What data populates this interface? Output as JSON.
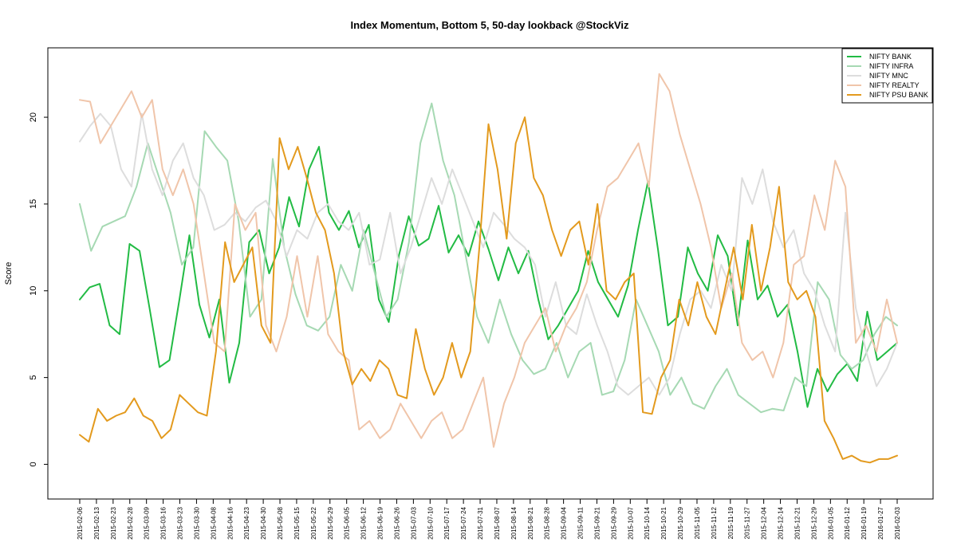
{
  "chart_data": {
    "type": "line",
    "title": "Index Momentum, Bottom 5, 50-day lookback @StockViz",
    "ylabel": "Score",
    "ylim": [
      -2,
      24
    ],
    "yticks": [
      0,
      5,
      10,
      15,
      20
    ],
    "legend_position": "top-right",
    "x_ticks": [
      "2015-02-06",
      "2015-02-13",
      "2015-02-23",
      "2015-02-28",
      "2015-03-09",
      "2015-03-16",
      "2015-03-23",
      "2015-03-30",
      "2015-04-08",
      "2015-04-16",
      "2015-04-23",
      "2015-04-30",
      "2015-05-08",
      "2015-05-15",
      "2015-05-22",
      "2015-05-29",
      "2015-06-05",
      "2015-06-12",
      "2015-06-19",
      "2015-06-26",
      "2015-07-03",
      "2015-07-10",
      "2015-07-17",
      "2015-07-24",
      "2015-07-31",
      "2015-08-07",
      "2015-08-14",
      "2015-08-21",
      "2015-08-28",
      "2015-09-04",
      "2015-09-11",
      "2015-09-21",
      "2015-09-29",
      "2015-10-07",
      "2015-10-14",
      "2015-10-21",
      "2015-10-29",
      "2015-11-05",
      "2015-11-12",
      "2015-11-19",
      "2015-11-27",
      "2015-12-04",
      "2015-12-14",
      "2015-12-21",
      "2015-12-29",
      "2016-01-05",
      "2016-01-12",
      "2016-01-19",
      "2016-01-27",
      "2016-02-03"
    ],
    "series": [
      {
        "name": "NIFTY BANK",
        "color": "#22bb44",
        "values": [
          9.5,
          10.2,
          10.4,
          8.0,
          7.5,
          12.7,
          12.3,
          9.0,
          5.6,
          6.0,
          9.5,
          13.2,
          9.2,
          7.3,
          9.5,
          4.7,
          7.0,
          12.8,
          13.5,
          11.0,
          12.5,
          15.4,
          13.7,
          17.0,
          18.3,
          14.5,
          13.5,
          14.6,
          12.5,
          13.8,
          9.5,
          8.2,
          12.0,
          14.3,
          12.6,
          13.0,
          14.9,
          12.2,
          13.2,
          12.0,
          14.0,
          12.4,
          10.6,
          12.5,
          11.0,
          12.3,
          9.5,
          7.2,
          8.0,
          9.0,
          10.0,
          12.3,
          10.5,
          9.5,
          8.5,
          10.3,
          13.5,
          16.3,
          12.4,
          8.0,
          8.5,
          12.5,
          11.0,
          10.0,
          13.2,
          12.0,
          8.0,
          12.9,
          9.5,
          10.3,
          8.5,
          9.2,
          6.5,
          3.3,
          5.5,
          4.2,
          5.2,
          5.8,
          4.8,
          8.8,
          6.0,
          6.5,
          7.0
        ]
      },
      {
        "name": "NIFTY INFRA",
        "color": "#a6d9b3",
        "values": [
          15.0,
          12.3,
          13.7,
          14.0,
          14.3,
          16.0,
          18.5,
          16.5,
          14.5,
          11.5,
          12.5,
          19.2,
          18.3,
          17.5,
          14.0,
          8.5,
          9.5,
          17.6,
          12.5,
          9.8,
          8.0,
          7.7,
          8.5,
          11.5,
          10.0,
          13.5,
          11.0,
          8.5,
          9.5,
          12.8,
          18.5,
          20.8,
          17.5,
          15.5,
          12.0,
          8.5,
          7.0,
          9.5,
          7.5,
          6.0,
          5.2,
          5.5,
          7.0,
          5.0,
          6.5,
          7.0,
          4.0,
          4.2,
          6.0,
          9.5,
          8.0,
          6.5,
          4.0,
          5.0,
          3.5,
          3.2,
          4.5,
          5.5,
          4.0,
          3.5,
          3.0,
          3.2,
          3.1,
          5.0,
          4.5,
          10.5,
          9.5,
          6.3,
          5.5,
          6.0,
          7.5,
          8.5,
          8.0
        ]
      },
      {
        "name": "NIFTY MNC",
        "color": "#dddddd",
        "values": [
          18.6,
          19.5,
          20.2,
          19.5,
          17.0,
          16.0,
          20.2,
          17.0,
          15.5,
          17.5,
          18.5,
          16.5,
          15.5,
          13.5,
          13.8,
          14.5,
          14.0,
          14.8,
          15.2,
          14.0,
          12.0,
          13.5,
          13.0,
          14.5,
          15.0,
          14.0,
          13.5,
          14.5,
          11.5,
          11.8,
          14.5,
          11.0,
          12.5,
          14.5,
          16.5,
          15.0,
          17.0,
          15.5,
          14.0,
          12.5,
          14.5,
          13.8,
          13.0,
          12.5,
          11.5,
          8.5,
          10.5,
          8.0,
          7.5,
          9.8,
          8.0,
          6.5,
          4.5,
          4.0,
          4.5,
          5.0,
          4.0,
          5.0,
          7.5,
          9.5,
          10.0,
          9.0,
          11.5,
          10.0,
          16.5,
          15.0,
          17.0,
          14.0,
          12.5,
          13.5,
          11.0,
          10.0,
          8.0,
          6.5,
          14.5,
          9.0,
          6.5,
          4.5,
          5.5,
          7.0
        ]
      },
      {
        "name": "NIFTY REALTY",
        "color": "#f0c5aa",
        "values": [
          21.0,
          20.9,
          18.5,
          19.5,
          20.5,
          21.5,
          20.0,
          21.0,
          17.0,
          15.5,
          17.0,
          15.0,
          11.0,
          7.0,
          6.5,
          15.0,
          13.5,
          14.5,
          8.0,
          6.5,
          8.5,
          12.0,
          8.5,
          12.0,
          7.5,
          6.5,
          6.0,
          2.0,
          2.5,
          1.5,
          2.0,
          3.5,
          2.5,
          1.5,
          2.5,
          3.0,
          1.5,
          2.0,
          3.5,
          5.0,
          1.0,
          3.5,
          5.0,
          7.0,
          8.0,
          9.0,
          6.5,
          8.0,
          9.0,
          10.5,
          13.5,
          16.0,
          16.5,
          17.5,
          18.5,
          16.0,
          22.5,
          21.5,
          19.0,
          17.0,
          15.0,
          12.5,
          9.0,
          11.0,
          7.0,
          6.0,
          6.5,
          5.0,
          7.0,
          11.5,
          12.0,
          15.5,
          13.5,
          17.5,
          16.0,
          7.0,
          8.0,
          6.5,
          9.5,
          7.0
        ]
      },
      {
        "name": "NIFTY PSU BANK",
        "color": "#e39a1e",
        "values": [
          1.7,
          1.3,
          3.2,
          2.5,
          2.8,
          3.0,
          3.8,
          2.8,
          2.5,
          1.5,
          2.0,
          4.0,
          3.5,
          3.0,
          2.8,
          6.5,
          12.8,
          10.5,
          11.5,
          12.5,
          8.0,
          7.0,
          18.8,
          17.0,
          18.3,
          16.5,
          14.5,
          13.5,
          11.0,
          6.5,
          4.6,
          5.5,
          4.8,
          6.0,
          5.5,
          4.0,
          3.8,
          7.8,
          5.5,
          4.0,
          5.0,
          7.0,
          5.0,
          6.5,
          12.5,
          19.6,
          17.0,
          13.0,
          18.5,
          20.0,
          16.5,
          15.5,
          13.5,
          12.0,
          13.5,
          14.0,
          11.5,
          15.0,
          10.0,
          9.5,
          10.5,
          11.0,
          3.0,
          2.9,
          5.0,
          6.0,
          9.5,
          8.0,
          10.5,
          8.5,
          7.5,
          10.0,
          12.5,
          9.5,
          13.8,
          10.0,
          12.5,
          16.0,
          10.5,
          9.5,
          10.0,
          8.5,
          2.5,
          1.5,
          0.3,
          0.5,
          0.2,
          0.1,
          0.3,
          0.3,
          0.5
        ]
      }
    ]
  }
}
